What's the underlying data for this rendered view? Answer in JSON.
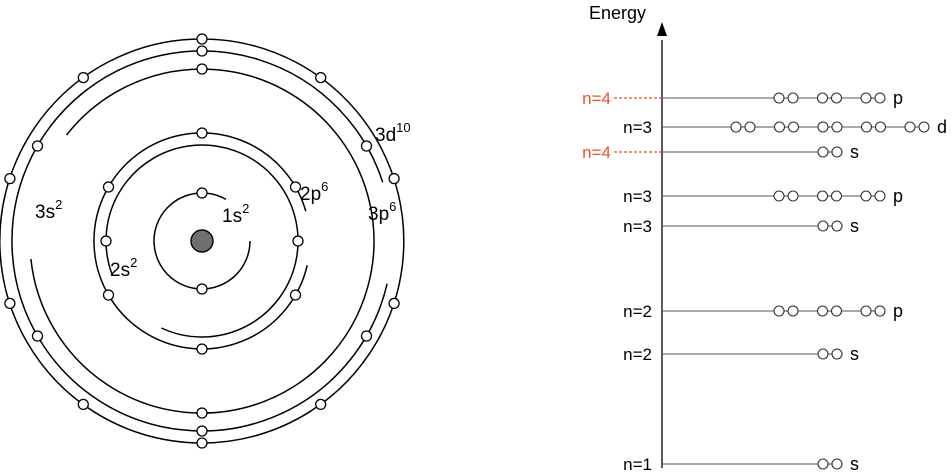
{
  "colors": {
    "line": "#000000",
    "nucleus": "#707070",
    "highlight": "#e8542f"
  },
  "atom": {
    "labels": [
      {
        "id": "1s",
        "base": "1s",
        "sup": "2"
      },
      {
        "id": "2s",
        "base": "2s",
        "sup": "2"
      },
      {
        "id": "2p",
        "base": "2p",
        "sup": "6"
      },
      {
        "id": "3s",
        "base": "3s",
        "sup": "2"
      },
      {
        "id": "3p",
        "base": "3p",
        "sup": "6"
      },
      {
        "id": "3d",
        "base": "3d",
        "sup": "10"
      }
    ],
    "shells": [
      {
        "id": "1s",
        "electrons": 2
      },
      {
        "id": "2s",
        "electrons": 2
      },
      {
        "id": "2p",
        "electrons": 6
      },
      {
        "id": "3s",
        "electrons": 2
      },
      {
        "id": "3p",
        "electrons": 6
      },
      {
        "id": "3d",
        "electrons": 10
      }
    ]
  },
  "energy_diagram": {
    "axis_label": "Energy",
    "levels": [
      {
        "n": "n=4",
        "sub": "p",
        "electrons": 6,
        "highlight": true
      },
      {
        "n": "n=3",
        "sub": "d",
        "electrons": 10,
        "highlight": false
      },
      {
        "n": "n=4",
        "sub": "s",
        "electrons": 2,
        "highlight": true
      },
      {
        "n": "n=3",
        "sub": "p",
        "electrons": 6,
        "highlight": false
      },
      {
        "n": "n=3",
        "sub": "s",
        "electrons": 2,
        "highlight": false
      },
      {
        "n": "n=2",
        "sub": "p",
        "electrons": 6,
        "highlight": false
      },
      {
        "n": "n=2",
        "sub": "s",
        "electrons": 2,
        "highlight": false
      },
      {
        "n": "n=1",
        "sub": "s",
        "electrons": 2,
        "highlight": false
      }
    ]
  }
}
